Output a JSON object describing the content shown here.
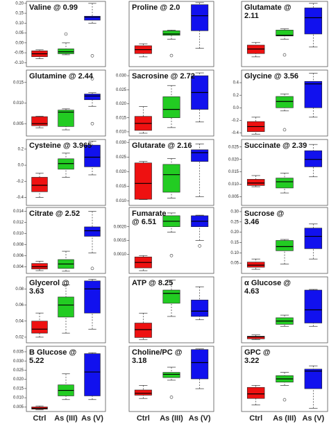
{
  "chart_data": [
    {
      "type": "box",
      "title": "Valine @ 0.99",
      "ylim": [
        -0.12,
        0.21
      ],
      "yticks": [
        {
          "value": -0.1,
          "label": "-0.10"
        },
        -0.05,
        {
          "value": 0,
          "label": "0.00"
        },
        0.05,
        {
          "value": 0.1,
          "label": "0.10"
        },
        0.15,
        {
          "value": 0.2,
          "label": "0.20"
        }
      ],
      "boxes": [
        {
          "color": "#ee1111",
          "min": -0.08,
          "q1": -0.07,
          "median": -0.055,
          "q3": -0.04,
          "max": -0.035
        },
        {
          "color": "#22cc22",
          "min": -0.06,
          "q1": -0.055,
          "median": -0.045,
          "q3": -0.03,
          "max": 0.0,
          "outliers": [
            0.045
          ]
        },
        {
          "color": "#1111ee",
          "min": 0.1,
          "q1": 0.115,
          "median": 0.13,
          "q3": 0.135,
          "max": 0.2,
          "outliers": [
            -0.065
          ]
        }
      ]
    },
    {
      "type": "box",
      "title": "Proline @ 2.0",
      "ylim": [
        0,
        1
      ],
      "boxes": [
        {
          "color": "#ee1111",
          "min": 0.15,
          "q1": 0.2,
          "median": 0.26,
          "q3": 0.32,
          "max": 0.35
        },
        {
          "color": "#22cc22",
          "min": 0.42,
          "q1": 0.48,
          "median": 0.5,
          "q3": 0.55,
          "max": 0.56,
          "outliers": [
            0.17
          ]
        },
        {
          "color": "#1111ee",
          "min": 0.28,
          "q1": 0.55,
          "median": 0.78,
          "q3": 0.95,
          "max": 0.98
        }
      ]
    },
    {
      "type": "box",
      "title": "Glutamate @ 2.11",
      "ylim": [
        0,
        1
      ],
      "boxes": [
        {
          "color": "#ee1111",
          "min": 0.15,
          "q1": 0.2,
          "median": 0.27,
          "q3": 0.33,
          "max": 0.37
        },
        {
          "color": "#22cc22",
          "min": 0.42,
          "q1": 0.47,
          "median": 0.48,
          "q3": 0.56,
          "max": 0.58,
          "outliers": [
            0.18
          ]
        },
        {
          "color": "#1111ee",
          "min": 0.3,
          "q1": 0.5,
          "median": 0.75,
          "q3": 0.9,
          "max": 0.97
        }
      ]
    },
    {
      "type": "box",
      "title": "Glutamine @ 2.44",
      "ylim": [
        0.002,
        0.018
      ],
      "yticks": [
        0.005,
        {
          "value": 0.01,
          "label": "0.010"
        },
        0.015
      ],
      "boxes": [
        {
          "color": "#ee1111",
          "min": 0.004,
          "q1": 0.0045,
          "median": 0.005,
          "q3": 0.0067,
          "max": 0.0068
        },
        {
          "color": "#22cc22",
          "min": 0.0035,
          "q1": 0.0043,
          "median": 0.0078,
          "q3": 0.0083,
          "max": 0.0086
        },
        {
          "color": "#1111ee",
          "min": 0.0092,
          "q1": 0.0108,
          "median": 0.0117,
          "q3": 0.0122,
          "max": 0.0125,
          "outliers": [
            0.0159,
            0.005
          ]
        }
      ]
    },
    {
      "type": "box",
      "title": "Sacrosine @ 2.72",
      "ylim": [
        0.0085,
        0.032
      ],
      "yticks": [
        {
          "value": 0.01,
          "label": "0.010"
        },
        0.015,
        {
          "value": 0.02,
          "label": "0.020"
        },
        0.025,
        {
          "value": 0.03,
          "label": "0.030"
        }
      ],
      "boxes": [
        {
          "color": "#ee1111",
          "min": 0.0095,
          "q1": 0.0105,
          "median": 0.013,
          "q3": 0.0155,
          "max": 0.019
        },
        {
          "color": "#22cc22",
          "min": 0.0115,
          "q1": 0.015,
          "median": 0.018,
          "q3": 0.0225,
          "max": 0.0265
        },
        {
          "color": "#1111ee",
          "min": 0.0135,
          "q1": 0.018,
          "median": 0.024,
          "q3": 0.03,
          "max": 0.031
        }
      ]
    },
    {
      "type": "box",
      "title": "Glycine @ 3.56",
      "ylim": [
        -0.45,
        0.6
      ],
      "yticks": [
        -0.4,
        -0.2,
        {
          "value": 0,
          "label": "0.0"
        },
        0.2,
        0.4
      ],
      "boxes": [
        {
          "color": "#ee1111",
          "min": -0.42,
          "q1": -0.38,
          "median": -0.3,
          "q3": -0.22,
          "max": -0.15
        },
        {
          "color": "#22cc22",
          "min": -0.05,
          "q1": 0.0,
          "median": 0.1,
          "q3": 0.18,
          "max": 0.22,
          "outliers": [
            -0.35
          ]
        },
        {
          "color": "#1111ee",
          "min": -0.15,
          "q1": 0.0,
          "median": 0.38,
          "q3": 0.42,
          "max": 0.55
        }
      ]
    },
    {
      "type": "box",
      "title": "Cysteine @ 3.965",
      "ylim": [
        -0.5,
        0.32
      ],
      "yticks": [
        -0.4,
        -0.2,
        {
          "value": 0,
          "label": "0.0"
        },
        0.2
      ],
      "boxes": [
        {
          "color": "#ee1111",
          "min": -0.4,
          "q1": -0.33,
          "median": -0.25,
          "q3": -0.15,
          "max": -0.1
        },
        {
          "color": "#22cc22",
          "min": -0.15,
          "q1": -0.05,
          "median": 0.02,
          "q3": 0.08,
          "max": 0.15
        },
        {
          "color": "#1111ee",
          "min": -0.12,
          "q1": -0.02,
          "median": 0.1,
          "q3": 0.25,
          "max": 0.3
        }
      ]
    },
    {
      "type": "box",
      "title": "Glutarate @ 2.16",
      "ylim": [
        0.0085,
        0.031
      ],
      "yticks": [
        {
          "value": 0.01,
          "label": "0.010"
        },
        0.015,
        {
          "value": 0.02,
          "label": "0.020"
        },
        0.025,
        {
          "value": 0.03,
          "label": "0.030"
        }
      ],
      "boxes": [
        {
          "color": "#ee1111",
          "min": 0.0105,
          "q1": 0.0106,
          "median": 0.016,
          "q3": 0.023,
          "max": 0.0235
        },
        {
          "color": "#22cc22",
          "min": 0.011,
          "q1": 0.013,
          "median": 0.019,
          "q3": 0.0225,
          "max": 0.0245
        },
        {
          "color": "#1111ee",
          "min": 0.0115,
          "q1": 0.0235,
          "median": 0.0265,
          "q3": 0.0275,
          "max": 0.0295
        }
      ]
    },
    {
      "type": "box",
      "title": "Succinate @ 2.39",
      "ylim": [
        0.0015,
        0.028
      ],
      "yticks": [
        0.005,
        {
          "value": 0.01,
          "label": "0.010"
        },
        0.015,
        {
          "value": 0.02,
          "label": "0.020"
        },
        0.025
      ],
      "boxes": [
        {
          "color": "#ee1111",
          "min": 0.009,
          "q1": 0.0095,
          "median": 0.0105,
          "q3": 0.012,
          "max": 0.0135
        },
        {
          "color": "#22cc22",
          "min": 0.0065,
          "q1": 0.0085,
          "median": 0.011,
          "q3": 0.0125,
          "max": 0.0145
        },
        {
          "color": "#1111ee",
          "min": 0.013,
          "q1": 0.017,
          "median": 0.02,
          "q3": 0.0235,
          "max": 0.026
        }
      ]
    },
    {
      "type": "box",
      "title": "Citrate @ 2.52",
      "ylim": [
        0.0028,
        0.0147
      ],
      "yticks": [
        0.004,
        0.006,
        0.008,
        {
          "value": 0.01,
          "label": "0.010"
        },
        0.012,
        0.014
      ],
      "boxes": [
        {
          "color": "#ee1111",
          "min": 0.0033,
          "q1": 0.0036,
          "median": 0.004,
          "q3": 0.0046,
          "max": 0.005
        },
        {
          "color": "#22cc22",
          "min": 0.0032,
          "q1": 0.0037,
          "median": 0.0045,
          "q3": 0.0053,
          "max": 0.0068
        },
        {
          "color": "#1111ee",
          "min": 0.0065,
          "q1": 0.0095,
          "median": 0.0105,
          "q3": 0.0112,
          "max": 0.014,
          "outliers": [
            0.0037
          ]
        }
      ]
    },
    {
      "type": "box",
      "title": "Fumarate @ 6.51",
      "ylim": [
        0.0003,
        0.0027
      ],
      "yticks": [
        {
          "value": 0.001,
          "label": "0.0010"
        },
        0.0015,
        {
          "value": 0.002,
          "label": "0.0020"
        }
      ],
      "boxes": [
        {
          "color": "#ee1111",
          "min": 0.0004,
          "q1": 0.0005,
          "median": 0.0007,
          "q3": 0.0009,
          "max": 0.00095
        },
        {
          "color": "#22cc22",
          "min": 0.0018,
          "q1": 0.002,
          "median": 0.0022,
          "q3": 0.0024,
          "max": 0.0025,
          "outliers": [
            0.00095
          ]
        },
        {
          "color": "#1111ee",
          "min": 0.0015,
          "q1": 0.002,
          "median": 0.0022,
          "q3": 0.0024,
          "max": 0.00242,
          "outliers": [
            0.0013
          ]
        }
      ]
    },
    {
      "type": "box",
      "title": "Sucrose @ 3.46",
      "ylim": [
        0,
        0.32
      ],
      "yticks": [
        0.05,
        {
          "value": 0.1,
          "label": "0.10"
        },
        0.15,
        {
          "value": 0.2,
          "label": "0.20"
        },
        0.25,
        {
          "value": 0.3,
          "label": "0.30"
        }
      ],
      "boxes": [
        {
          "color": "#ee1111",
          "min": 0.02,
          "q1": 0.03,
          "median": 0.04,
          "q3": 0.055,
          "max": 0.07
        },
        {
          "color": "#22cc22",
          "min": 0.045,
          "q1": 0.11,
          "median": 0.13,
          "q3": 0.16,
          "max": 0.165
        },
        {
          "color": "#1111ee",
          "min": 0.07,
          "q1": 0.12,
          "median": 0.18,
          "q3": 0.22,
          "max": 0.24
        }
      ]
    },
    {
      "type": "box",
      "title": "Glycerol @ 3.63",
      "ylim": [
        0.013,
        0.095
      ],
      "yticks": [
        0.02,
        0.04,
        0.06,
        0.08
      ],
      "boxes": [
        {
          "color": "#ee1111",
          "min": 0.02,
          "q1": 0.025,
          "median": 0.03,
          "q3": 0.04,
          "max": 0.05
        },
        {
          "color": "#22cc22",
          "min": 0.025,
          "q1": 0.045,
          "median": 0.06,
          "q3": 0.07,
          "max": 0.085
        },
        {
          "color": "#1111ee",
          "min": 0.03,
          "q1": 0.05,
          "median": 0.08,
          "q3": 0.09,
          "max": 0.092
        }
      ]
    },
    {
      "type": "box",
      "title": "ATP @ 8.25",
      "ylim": [
        0,
        1
      ],
      "boxes": [
        {
          "color": "#ee1111",
          "min": 0.05,
          "q1": 0.08,
          "median": 0.2,
          "q3": 0.3,
          "max": 0.45
        },
        {
          "color": "#22cc22",
          "min": 0.4,
          "q1": 0.6,
          "median": 0.75,
          "q3": 0.8,
          "max": 0.95
        },
        {
          "color": "#1111ee",
          "min": 0.35,
          "q1": 0.4,
          "median": 0.48,
          "q3": 0.65,
          "max": 0.85
        }
      ]
    },
    {
      "type": "box",
      "title": "α Glucose @ 4.63",
      "ylim": [
        0,
        1
      ],
      "boxes": [
        {
          "color": "#ee1111",
          "min": 0.05,
          "q1": 0.06,
          "median": 0.09,
          "q3": 0.1,
          "max": 0.12
        },
        {
          "color": "#22cc22",
          "min": 0.25,
          "q1": 0.28,
          "median": 0.33,
          "q3": 0.38,
          "max": 0.42
        },
        {
          "color": "#1111ee",
          "min": 0.25,
          "q1": 0.3,
          "median": 0.5,
          "q3": 0.8,
          "max": 0.81
        }
      ]
    },
    {
      "type": "box",
      "title": "B Glucose @ 5.22",
      "ylim": [
        0.0025,
        0.038
      ],
      "yticks": [
        0.005,
        {
          "value": 0.01,
          "label": "0.010"
        },
        0.015,
        {
          "value": 0.02,
          "label": "0.020"
        },
        0.025,
        {
          "value": 0.03,
          "label": "0.030"
        },
        0.035
      ],
      "categories": [
        "Ctrl",
        "As (III)",
        "As (V)"
      ],
      "boxes": [
        {
          "color": "#ee1111",
          "min": 0.0035,
          "q1": 0.0038,
          "median": 0.0042,
          "q3": 0.005,
          "max": 0.0055
        },
        {
          "color": "#22cc22",
          "min": 0.009,
          "q1": 0.011,
          "median": 0.014,
          "q3": 0.017,
          "max": 0.023
        },
        {
          "color": "#1111ee",
          "min": 0.009,
          "q1": 0.011,
          "median": 0.024,
          "q3": 0.034,
          "max": 0.0345
        }
      ]
    },
    {
      "type": "box",
      "title": "Choline/PC @ 3.18",
      "ylim": [
        0,
        1
      ],
      "categories": [
        "Ctrl",
        "As (III)",
        "As (V)"
      ],
      "boxes": [
        {
          "color": "#ee1111",
          "min": 0.2,
          "q1": 0.25,
          "median": 0.28,
          "q3": 0.33,
          "max": 0.4
        },
        {
          "color": "#22cc22",
          "min": 0.48,
          "q1": 0.52,
          "median": 0.57,
          "q3": 0.6,
          "max": 0.68,
          "outliers": [
            0.22
          ]
        },
        {
          "color": "#1111ee",
          "min": 0.35,
          "q1": 0.5,
          "median": 0.75,
          "q3": 0.95,
          "max": 0.96
        }
      ]
    },
    {
      "type": "box",
      "title": "GPC @ 3.22",
      "ylim": [
        0,
        1
      ],
      "categories": [
        "Ctrl",
        "As (III)",
        "As (V)"
      ],
      "boxes": [
        {
          "color": "#ee1111",
          "min": 0.1,
          "q1": 0.2,
          "median": 0.27,
          "q3": 0.37,
          "max": 0.4
        },
        {
          "color": "#22cc22",
          "min": 0.4,
          "q1": 0.45,
          "median": 0.5,
          "q3": 0.55,
          "max": 0.6,
          "outliers": [
            0.18
          ]
        },
        {
          "color": "#1111ee",
          "min": 0.05,
          "q1": 0.35,
          "median": 0.62,
          "q3": 0.65,
          "max": 0.7
        }
      ]
    }
  ]
}
